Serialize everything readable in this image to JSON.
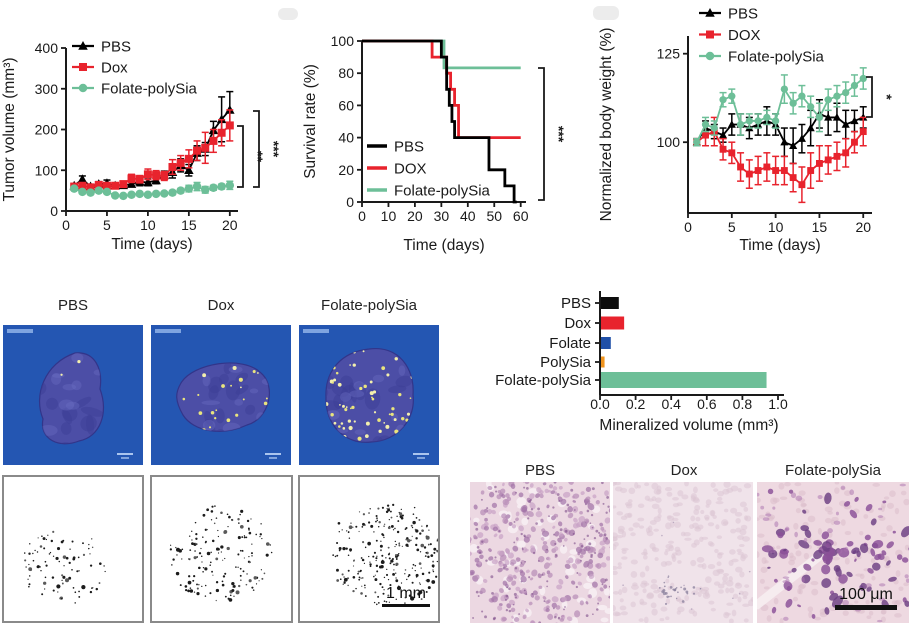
{
  "colors": {
    "pbs": "#000000",
    "dox": "#e8232d",
    "folate": "#2050a8",
    "polysia": "#f0941e",
    "folate_polysia": "#6dbf98",
    "microct_bg": "#2456b2"
  },
  "microct": {
    "labels": [
      "PBS",
      "Dox",
      "Folate-polySia"
    ]
  },
  "sections": {
    "scale_bar": "1 mm"
  },
  "histology": {
    "labels": [
      "PBS",
      "Dox",
      "Folate-polySia"
    ],
    "scale_bar": "100 μm"
  },
  "chart_data": [
    {
      "id": "tumor_volume",
      "type": "line",
      "xlabel": "Time (days)",
      "ylabel": "Tumor volume (mm³)",
      "xlim": [
        0,
        21
      ],
      "ylim": [
        0,
        400
      ],
      "xticks": [
        0,
        5,
        10,
        15,
        20
      ],
      "yticks": [
        0,
        100,
        200,
        300,
        400
      ],
      "x": [
        1,
        2,
        3,
        4,
        5,
        6,
        7,
        8,
        9,
        10,
        11,
        12,
        13,
        14,
        15,
        16,
        17,
        18,
        19,
        20
      ],
      "series": [
        {
          "name": "PBS",
          "color": "#000000",
          "marker": "triangle",
          "values": [
            62,
            78,
            60,
            66,
            68,
            62,
            63,
            66,
            72,
            70,
            75,
            88,
            95,
            112,
            100,
            142,
            152,
            198,
            225,
            248
          ],
          "errors": [
            4,
            8,
            5,
            6,
            8,
            5,
            5,
            6,
            10,
            8,
            8,
            10,
            14,
            16,
            14,
            18,
            16,
            22,
            55,
            45
          ]
        },
        {
          "name": "Dox",
          "color": "#e8232d",
          "marker": "square",
          "values": [
            60,
            62,
            58,
            64,
            62,
            62,
            66,
            80,
            78,
            90,
            88,
            86,
            108,
            118,
            128,
            148,
            155,
            172,
            192,
            210
          ],
          "errors": [
            4,
            5,
            4,
            5,
            5,
            5,
            7,
            10,
            9,
            13,
            11,
            11,
            18,
            18,
            22,
            24,
            38,
            28,
            32,
            38
          ]
        },
        {
          "name": "Folate-polySia",
          "color": "#6dbf98",
          "marker": "circle",
          "values": [
            55,
            47,
            45,
            50,
            47,
            38,
            37,
            40,
            42,
            40,
            42,
            43,
            45,
            50,
            55,
            60,
            52,
            57,
            60,
            63
          ],
          "errors": [
            3,
            4,
            3,
            4,
            4,
            3,
            3,
            3,
            4,
            4,
            4,
            4,
            5,
            5,
            8,
            10,
            8,
            6,
            6,
            10
          ]
        }
      ],
      "significance": [
        "**",
        "***"
      ],
      "legend_position": "top-left-inside",
      "grid": false
    },
    {
      "id": "survival",
      "type": "step",
      "xlabel": "Time (days)",
      "ylabel": "Survival rate (%)",
      "xlim": [
        0,
        62
      ],
      "ylim": [
        0,
        100
      ],
      "xticks": [
        0,
        10,
        20,
        30,
        40,
        50,
        60
      ],
      "yticks": [
        0,
        20,
        40,
        60,
        80,
        100
      ],
      "series": [
        {
          "name": "PBS",
          "color": "#000000",
          "points": [
            [
              0,
              100
            ],
            [
              30,
              100
            ],
            [
              30,
              90
            ],
            [
              32,
              90
            ],
            [
              32,
              70
            ],
            [
              33,
              70
            ],
            [
              33,
              60
            ],
            [
              34,
              60
            ],
            [
              34,
              50
            ],
            [
              35,
              50
            ],
            [
              35,
              40
            ],
            [
              48,
              40
            ],
            [
              48,
              20
            ],
            [
              54,
              20
            ],
            [
              54,
              10
            ],
            [
              57.5,
              10
            ],
            [
              57.5,
              0
            ],
            [
              58.5,
              0
            ]
          ]
        },
        {
          "name": "DOX",
          "color": "#e8232d",
          "points": [
            [
              0,
              100
            ],
            [
              26.5,
              100
            ],
            [
              26.5,
              90
            ],
            [
              32,
              90
            ],
            [
              32,
              80
            ],
            [
              33.5,
              80
            ],
            [
              33.5,
              70
            ],
            [
              35,
              70
            ],
            [
              35,
              60
            ],
            [
              36.5,
              60
            ],
            [
              36.5,
              40
            ],
            [
              60,
              40
            ]
          ]
        },
        {
          "name": "Folate-polySia",
          "color": "#6dbf98",
          "points": [
            [
              0,
              100
            ],
            [
              31,
              100
            ],
            [
              31,
              83.3
            ],
            [
              60,
              83.3
            ]
          ]
        }
      ],
      "significance": [
        "***"
      ],
      "legend_position": "bottom-left-inside",
      "grid": false
    },
    {
      "id": "body_weight",
      "type": "line",
      "xlabel": "Time (days)",
      "ylabel": "Normalized body weight (%)",
      "xlim": [
        0,
        21
      ],
      "ylim": [
        80,
        130
      ],
      "xticks": [
        0,
        5,
        10,
        15,
        20
      ],
      "yticks": [
        100,
        125
      ],
      "x": [
        1,
        2,
        3,
        4,
        5,
        6,
        7,
        8,
        9,
        10,
        11,
        12,
        13,
        14,
        15,
        16,
        17,
        18,
        19,
        20
      ],
      "series": [
        {
          "name": "PBS",
          "color": "#000000",
          "marker": "triangle",
          "values": [
            100,
            104,
            103,
            102,
            105,
            105,
            104,
            105,
            106,
            105,
            100,
            99,
            101,
            104,
            108,
            107,
            107,
            105,
            106,
            107
          ],
          "errors": [
            1,
            2,
            2,
            2,
            3,
            3,
            3,
            3,
            4,
            3,
            4,
            5,
            4,
            5,
            4,
            5,
            4,
            4,
            3,
            3
          ]
        },
        {
          "name": "DOX",
          "color": "#e8232d",
          "marker": "square",
          "values": [
            100,
            102,
            103,
            98,
            97,
            93,
            91,
            92,
            93,
            92,
            92,
            90,
            88,
            92,
            94,
            95,
            96,
            97,
            100,
            103
          ],
          "errors": [
            1,
            3,
            4,
            3,
            3,
            4,
            4,
            4,
            4,
            4,
            4,
            4,
            5,
            5,
            5,
            4,
            4,
            4,
            3,
            4
          ]
        },
        {
          "name": "Folate-polySia",
          "color": "#6dbf98",
          "marker": "circle",
          "values": [
            100,
            105,
            104,
            112,
            113,
            105,
            106,
            106,
            107,
            106,
            115,
            111,
            113,
            110,
            107,
            112,
            113,
            114,
            116,
            118
          ],
          "errors": [
            1,
            2,
            2,
            2,
            2,
            3,
            2,
            2,
            2,
            2,
            4,
            3,
            3,
            3,
            4,
            3,
            3,
            3,
            3,
            3
          ]
        }
      ],
      "significance": [
        "*"
      ],
      "legend_position": "top-outside",
      "grid": false
    },
    {
      "id": "mineralized_volume",
      "type": "bar",
      "orientation": "horizontal",
      "xlabel": "Mineralized volume (mm³)",
      "categories": [
        "PBS",
        "Dox",
        "Folate",
        "PolySia",
        "Folate-polySia"
      ],
      "values": [
        0.1,
        0.13,
        0.055,
        0.02,
        0.93
      ],
      "colors": [
        "#0d0d0d",
        "#e8232d",
        "#2050a8",
        "#f0941e",
        "#6dbf98"
      ],
      "xtick_labels": [
        "0.0",
        "0.2",
        "0.4",
        "0.6",
        "0.8",
        "1.0"
      ],
      "xticks": [
        0,
        0.2,
        0.4,
        0.6,
        0.8,
        1.0
      ],
      "xlim": [
        0,
        1.0
      ],
      "grid": false
    }
  ]
}
